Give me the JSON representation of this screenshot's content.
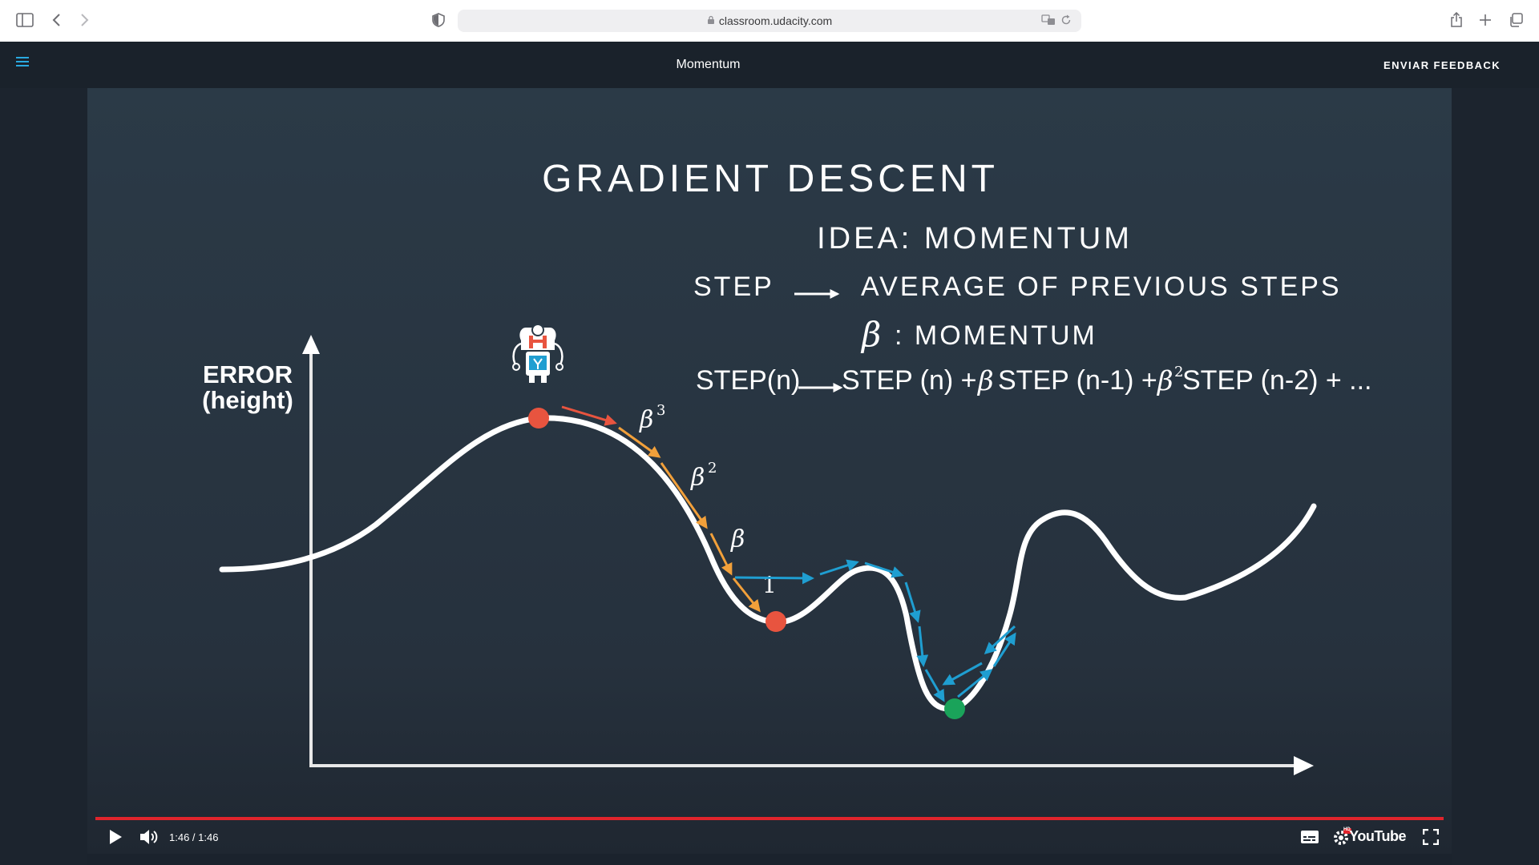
{
  "browser": {
    "url": "classroom.udacity.com"
  },
  "header": {
    "title": "Momentum",
    "feedback_label": "ENVIAR FEEDBACK"
  },
  "slide": {
    "title": "GRADIENT DESCENT",
    "idea": "IDEA: MOMENTUM",
    "step_label": "STEP",
    "step_target": "AVERAGE OF PREVIOUS STEPS",
    "beta_symbol": "β",
    "beta_def": ": MOMENTUM",
    "formula": {
      "lhs": "STEP(n)",
      "t1": "STEP (n) + ",
      "b1": "β",
      "t2": "STEP (n-1) + ",
      "b2": "β",
      "sup2": "2",
      "t3": "STEP (n-2) + ..."
    },
    "axis_label_line1": "ERROR",
    "axis_label_line2": "(height)",
    "step_labels": {
      "b3": "β",
      "b3_sup": "3",
      "b2": "β",
      "b2_sup": "2",
      "b1": "β",
      "one": "1"
    },
    "colors": {
      "curve": "#ffffff",
      "start_ball": "#e8543f",
      "local_min_ball": "#e8543f",
      "global_min_ball": "#1aa35a",
      "orange_arrows": "#f2a03a",
      "red_arrow": "#e8543f",
      "blue_arrows": "#1f9ed1"
    }
  },
  "player": {
    "time": "1:46 / 1:46",
    "progress": 1.0,
    "logo": "YouTube",
    "hd_badge": "HD"
  }
}
